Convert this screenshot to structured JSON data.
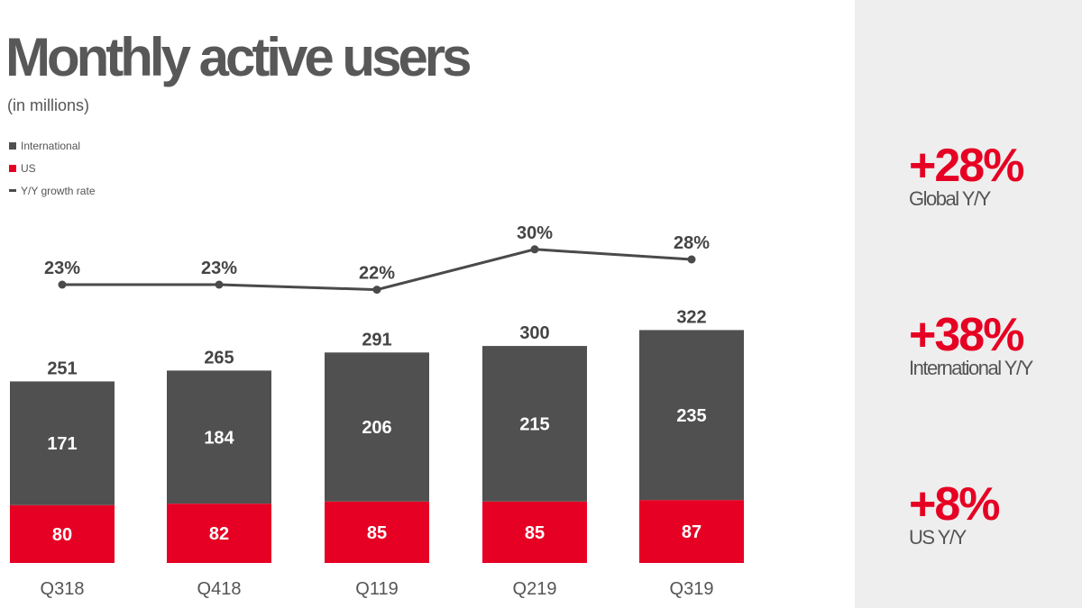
{
  "colors": {
    "international": "#505050",
    "us": "#e60023",
    "line": "#4a4a4a",
    "accent": "#e60023",
    "panel": "#eeeeee"
  },
  "chart_data": {
    "type": "bar",
    "stacked": true,
    "title": "Monthly active users",
    "subtitle": "(in millions)",
    "categories": [
      "Q318",
      "Q418",
      "Q119",
      "Q219",
      "Q319"
    ],
    "series": [
      {
        "name": "International",
        "values": [
          171,
          184,
          206,
          215,
          235
        ]
      },
      {
        "name": "US",
        "values": [
          80,
          82,
          85,
          85,
          87
        ]
      }
    ],
    "totals": [
      251,
      265,
      291,
      300,
      322
    ],
    "growth": {
      "name": "Y/Y growth rate",
      "type": "line",
      "values": [
        23,
        23,
        22,
        30,
        28
      ],
      "labels": [
        "23%",
        "23%",
        "22%",
        "30%",
        "28%"
      ]
    },
    "legend_position": "top-left",
    "grid": false
  },
  "legend": {
    "international": "International",
    "us": "US",
    "growth": "Y/Y growth rate"
  },
  "stats": [
    {
      "value": "+28%",
      "label": "Global Y/Y"
    },
    {
      "value": "+38%",
      "label": "International Y/Y"
    },
    {
      "value": "+8%",
      "label": "US Y/Y"
    }
  ]
}
